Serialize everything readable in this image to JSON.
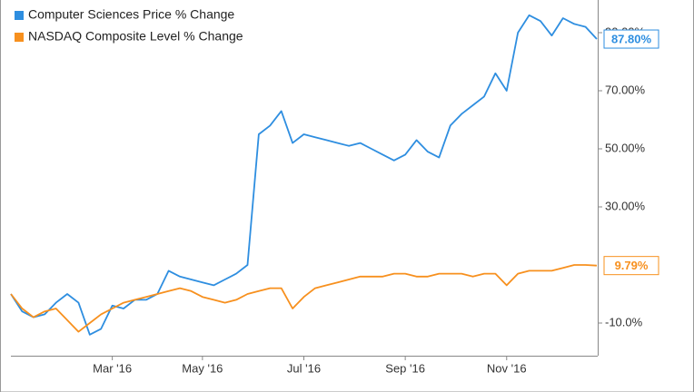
{
  "chart_data": {
    "type": "line",
    "categories": [
      null,
      null,
      null,
      null,
      null,
      null,
      null,
      null,
      null,
      "Mar '16",
      null,
      null,
      null,
      null,
      null,
      null,
      null,
      "May '16",
      null,
      null,
      null,
      null,
      null,
      null,
      null,
      null,
      "Jul '16",
      null,
      null,
      null,
      null,
      null,
      null,
      null,
      null,
      "Sep '16",
      null,
      null,
      null,
      null,
      null,
      null,
      null,
      null,
      "Nov '16",
      null,
      null,
      null,
      null,
      null,
      null,
      null,
      null
    ],
    "series": [
      {
        "name": "Computer Sciences Price % Change",
        "color": "#2e8ee0",
        "last_label": "87.80%",
        "values": [
          0,
          -6,
          -8,
          -7,
          -3,
          0,
          -3,
          -14,
          -12,
          -4,
          -5,
          -2,
          -2,
          0,
          8,
          6,
          5,
          4,
          3,
          5,
          7,
          10,
          55,
          58,
          63,
          52,
          55,
          54,
          53,
          52,
          51,
          52,
          50,
          48,
          46,
          48,
          53,
          49,
          47,
          58,
          62,
          65,
          68,
          76,
          70,
          90,
          96,
          94,
          89,
          95,
          93,
          92,
          87.8
        ]
      },
      {
        "name": "NASDAQ Composite Level % Change",
        "color": "#f7901e",
        "last_label": "9.79%",
        "values": [
          0,
          -5,
          -8,
          -6,
          -5,
          -9,
          -13,
          -10,
          -7,
          -5,
          -3,
          -2,
          -1,
          0,
          1,
          2,
          1,
          -1,
          -2,
          -3,
          -2,
          0,
          1,
          2,
          2,
          -5,
          -1,
          2,
          3,
          4,
          5,
          6,
          6,
          6,
          7,
          7,
          6,
          6,
          7,
          7,
          7,
          6,
          7,
          7,
          3,
          7,
          8,
          8,
          8,
          9,
          10,
          10,
          9.79
        ]
      }
    ],
    "ylim": [
      -21.25,
      101.25
    ],
    "yticks": [
      {
        "value": -10,
        "label": "-10.0%"
      },
      {
        "value": 30,
        "label": "30.00%"
      },
      {
        "value": 50,
        "label": "50.00%"
      },
      {
        "value": 70,
        "label": "70.00%"
      },
      {
        "value": 90,
        "label": "90.00%"
      }
    ],
    "grid": false,
    "legend": "top-left"
  }
}
